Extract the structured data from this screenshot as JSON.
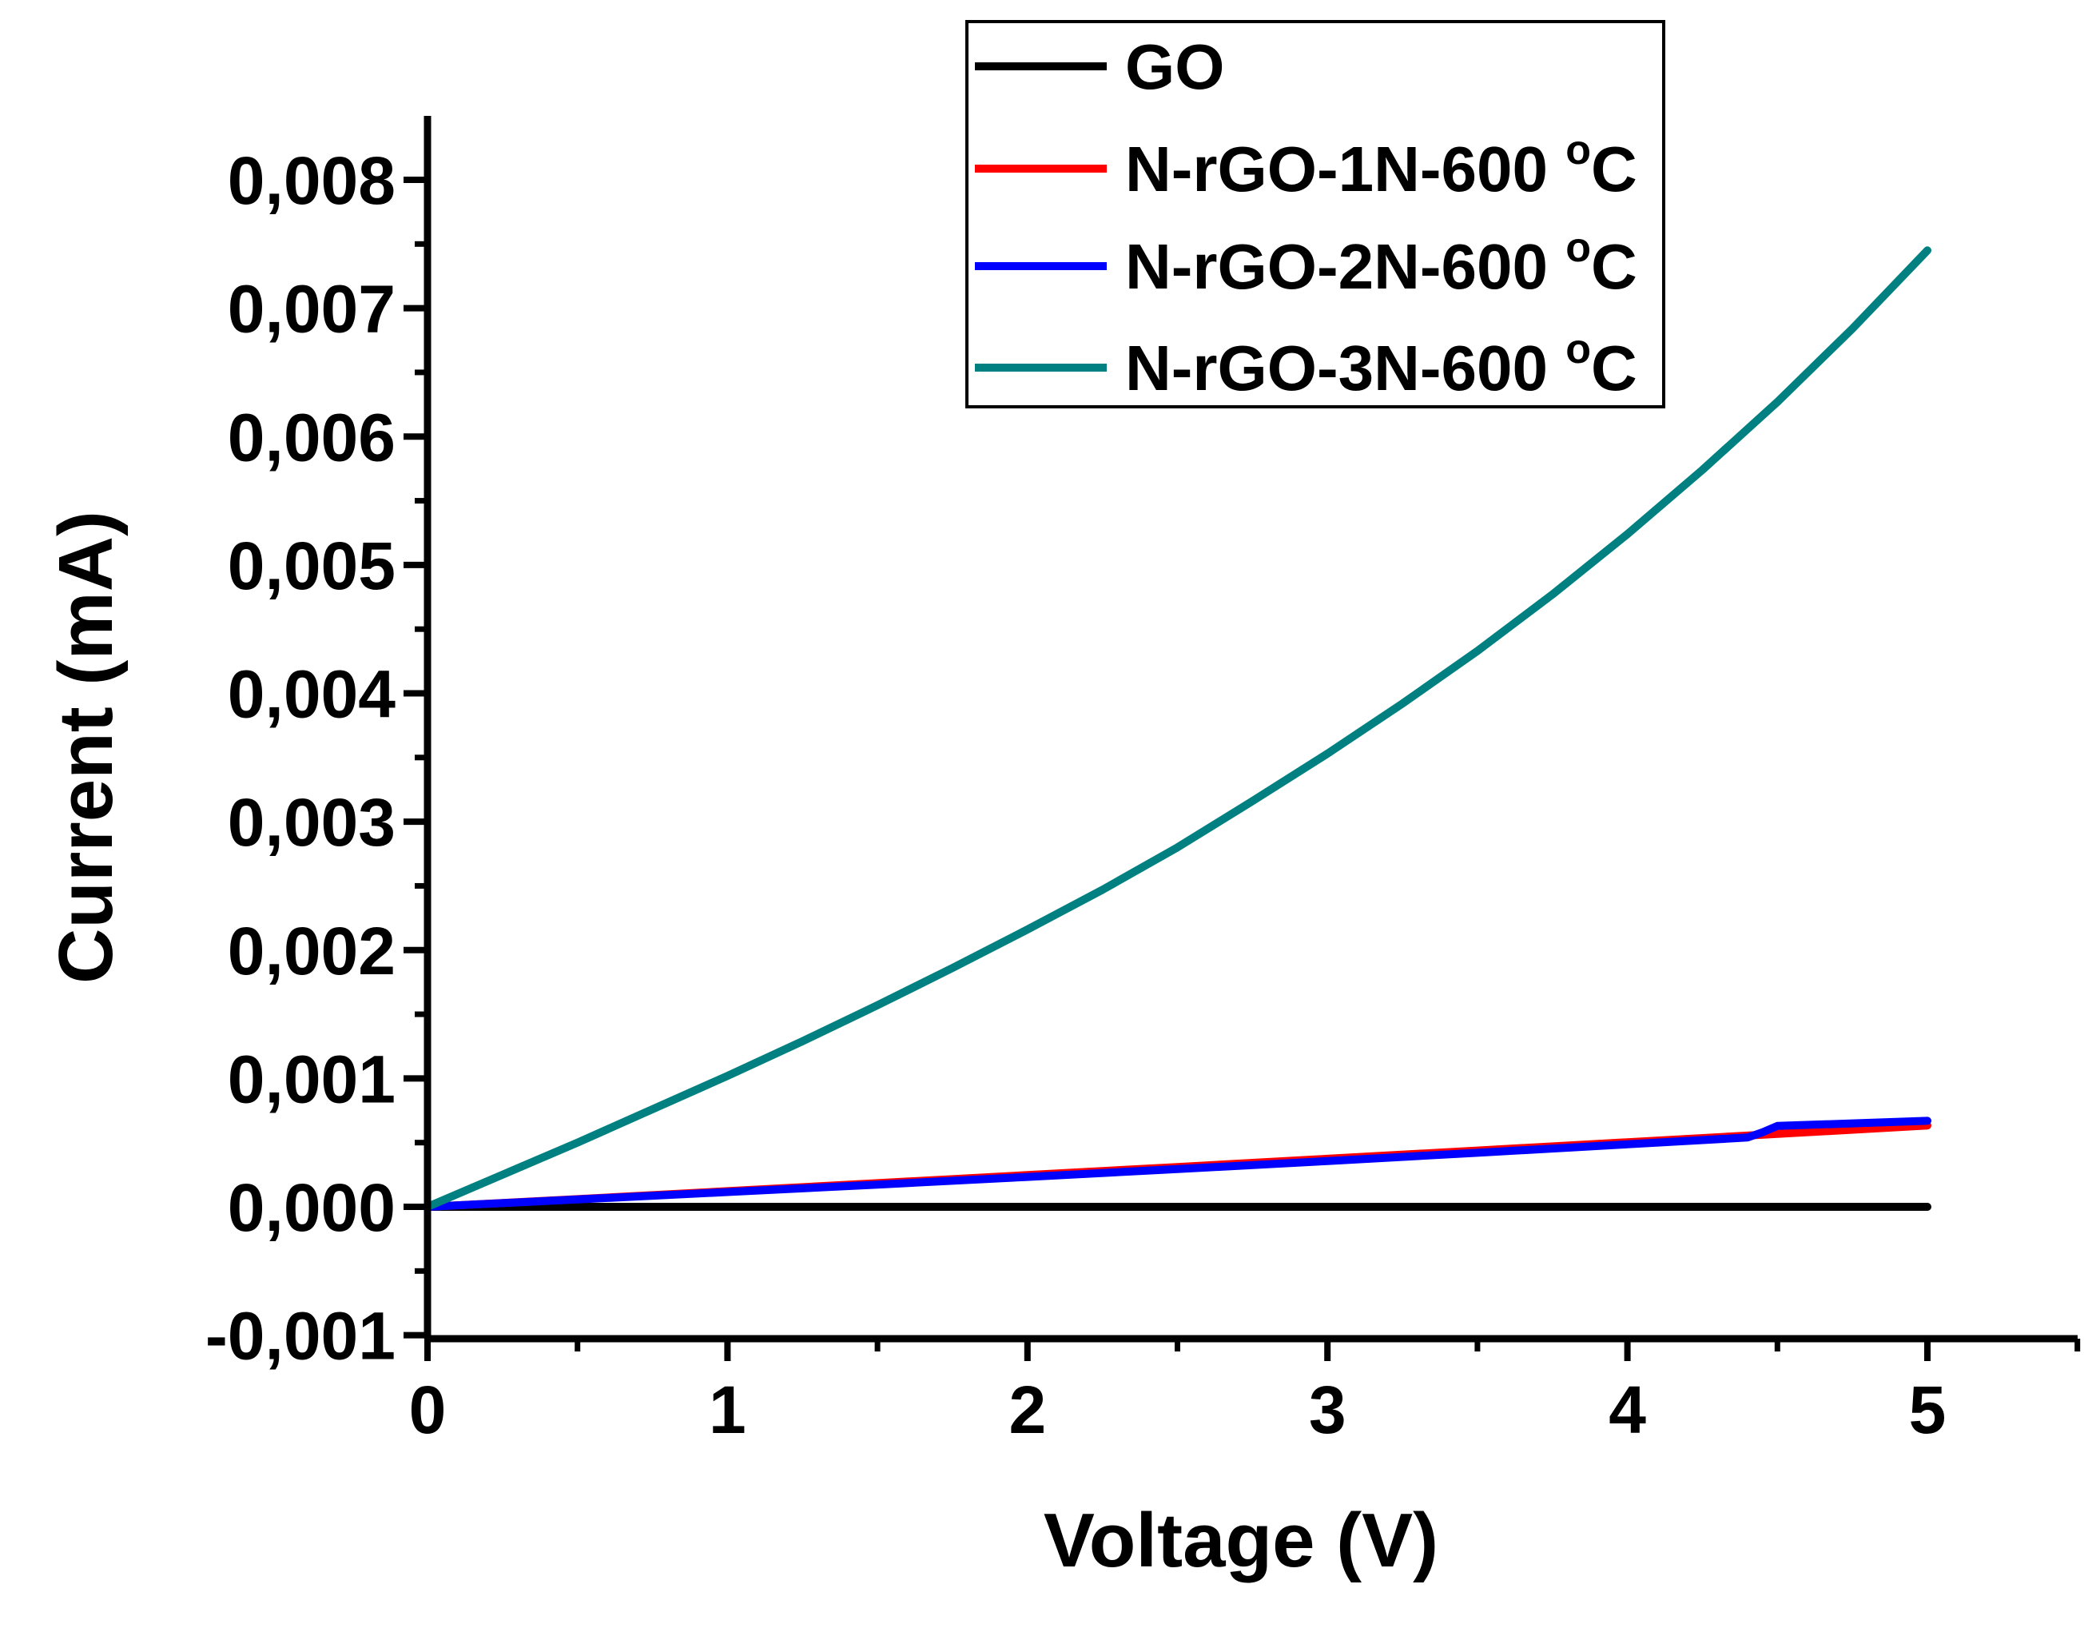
{
  "chart_data": {
    "type": "line",
    "title": "",
    "xlabel": "Voltage (V)",
    "ylabel": "Current (mA)",
    "xlim": [
      0,
      5.5
    ],
    "ylim": [
      -0.001,
      0.0085
    ],
    "xticks": [
      0,
      1,
      2,
      3,
      4,
      5
    ],
    "xtick_labels": [
      "0",
      "1",
      "2",
      "3",
      "4",
      "5"
    ],
    "yticks": [
      -0.001,
      0.0,
      0.001,
      0.002,
      0.003,
      0.004,
      0.005,
      0.006,
      0.007,
      0.008
    ],
    "ytick_labels": [
      "-0,001",
      "0,000",
      "0,001",
      "0,002",
      "0,003",
      "0,004",
      "0,005",
      "0,006",
      "0,007",
      "0,008"
    ],
    "grid": false,
    "legend_position": "top-right",
    "series": [
      {
        "name": "GO",
        "legend_label": "GO",
        "legend_sup": "",
        "legend_unit": "",
        "color": "#000000",
        "x": [
          0,
          1,
          2,
          3,
          4,
          5
        ],
        "y": [
          0,
          0,
          0,
          0,
          0,
          0
        ]
      },
      {
        "name": "N-rGO-1N-600 °C",
        "legend_label": "N-rGO-1N-600 ",
        "legend_sup": "o",
        "legend_unit": "C",
        "color": "#ff0000",
        "x": [
          0,
          0.5,
          1,
          1.5,
          2,
          2.5,
          3,
          3.5,
          4,
          4.5,
          5
        ],
        "y": [
          0,
          6e-05,
          0.000122,
          0.000184,
          0.000247,
          0.00031,
          0.000374,
          0.000438,
          0.000503,
          0.000568,
          0.000634
        ]
      },
      {
        "name": "N-rGO-2N-600 °C",
        "legend_label": "N-rGO-2N-600 ",
        "legend_sup": "o",
        "legend_unit": "C",
        "color": "#0000ff",
        "x": [
          0,
          0.5,
          1,
          1.5,
          2,
          2.5,
          3,
          3.5,
          4,
          4.4,
          4.45,
          4.5,
          5
        ],
        "y": [
          0,
          5.7e-05,
          0.000115,
          0.000173,
          0.000233,
          0.000294,
          0.000357,
          0.000421,
          0.000487,
          0.00054,
          0.00058,
          0.00063,
          0.00067
        ]
      },
      {
        "name": "N-rGO-3N-600 °C",
        "legend_label": "N-rGO-3N-600 ",
        "legend_sup": "o",
        "legend_unit": "C",
        "color": "#008080",
        "x": [
          0,
          0.25,
          0.5,
          0.75,
          1,
          1.25,
          1.5,
          1.75,
          2,
          2.25,
          2.5,
          2.75,
          3,
          3.25,
          3.5,
          3.75,
          4,
          4.25,
          4.5,
          4.75,
          5
        ],
        "y": [
          0,
          0.00025,
          0.0005,
          0.00076,
          0.00102,
          0.00129,
          0.00157,
          0.00186,
          0.00216,
          0.00247,
          0.0028,
          0.00316,
          0.00353,
          0.00392,
          0.00433,
          0.00477,
          0.00524,
          0.00574,
          0.00627,
          0.00684,
          0.00745
        ]
      }
    ]
  }
}
